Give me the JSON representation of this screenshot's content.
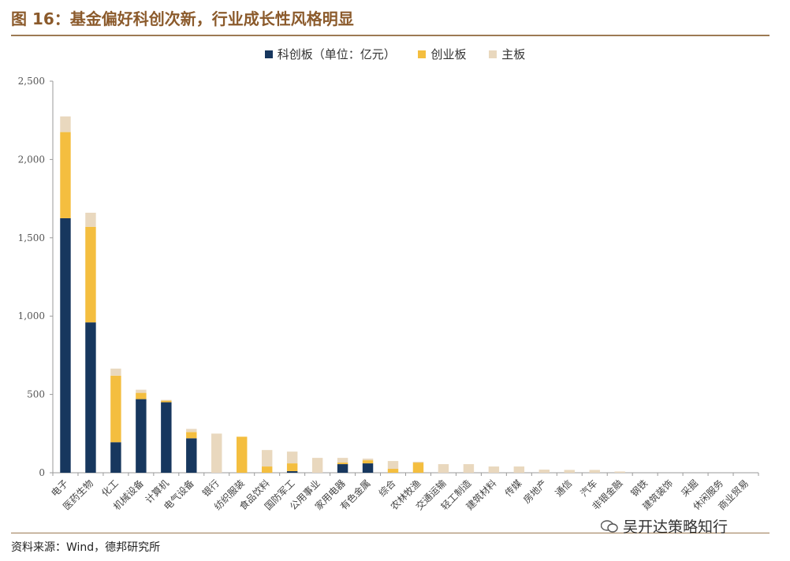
{
  "figure": {
    "title": "图 16：基金偏好科创次新，行业成长性风格明显",
    "source": "资料来源：Wind，德邦研究所",
    "watermark": "吴开达策略知行"
  },
  "colors": {
    "kechuang": "#17375E",
    "chuangye": "#F4BE3F",
    "zhuban": "#E9D8BE",
    "axis": "#9A9A9A",
    "accent": "#8B5A2B"
  },
  "chart_data": {
    "type": "bar",
    "stacked": true,
    "categories": [
      "电子",
      "医药生物",
      "化工",
      "机械设备",
      "计算机",
      "电气设备",
      "银行",
      "纺织服装",
      "食品饮料",
      "国防军工",
      "公用事业",
      "家用电器",
      "有色金属",
      "综合",
      "农林牧渔",
      "交通运输",
      "轻工制造",
      "建筑材料",
      "传媒",
      "房地产",
      "通信",
      "汽车",
      "非银金融",
      "钢铁",
      "建筑装饰",
      "采掘",
      "休闲服务",
      "商业贸易"
    ],
    "series": [
      {
        "name": "科创板（单位：亿元）",
        "values": [
          1625,
          960,
          195,
          470,
          450,
          220,
          0,
          0,
          0,
          10,
          0,
          55,
          60,
          0,
          0,
          0,
          0,
          0,
          0,
          0,
          0,
          0,
          0,
          0,
          0,
          0,
          0,
          0
        ]
      },
      {
        "name": "创业板",
        "values": [
          550,
          610,
          425,
          40,
          10,
          40,
          0,
          230,
          40,
          50,
          0,
          10,
          20,
          25,
          65,
          0,
          0,
          0,
          0,
          0,
          0,
          0,
          0,
          0,
          0,
          0,
          0,
          0
        ]
      },
      {
        "name": "主板",
        "values": [
          100,
          90,
          45,
          20,
          5,
          20,
          250,
          0,
          105,
          75,
          95,
          30,
          10,
          50,
          5,
          55,
          55,
          40,
          40,
          20,
          18,
          18,
          8,
          0,
          0,
          0,
          0,
          0
        ]
      }
    ],
    "yticks": [
      "0",
      "500",
      "1,000",
      "1,500",
      "2,000",
      "2,500"
    ],
    "ylim": [
      0,
      2500
    ],
    "legend_position": "top-center",
    "grid": false
  }
}
